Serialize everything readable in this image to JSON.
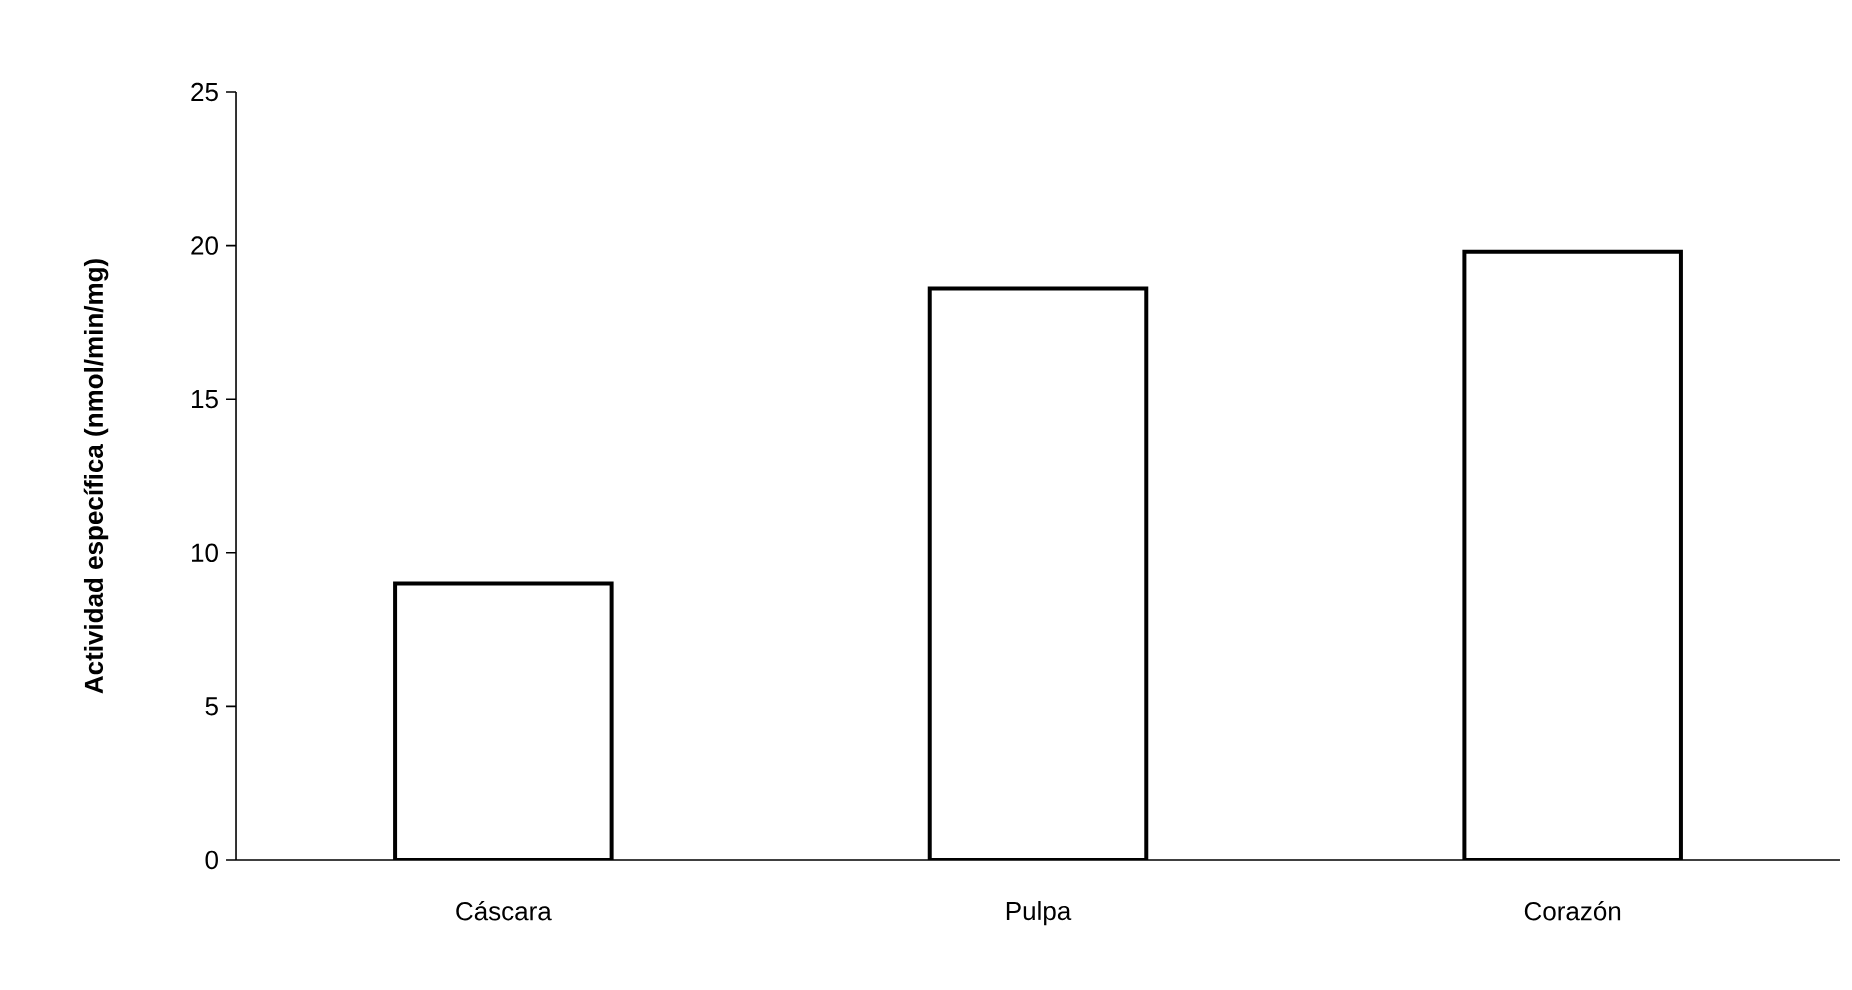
{
  "chart_data": {
    "type": "bar",
    "ylabel": "Actividad específica  (nmol/min/mg)",
    "categories": [
      "Cáscara",
      "Pulpa",
      "Corazón"
    ],
    "values": [
      9.0,
      18.6,
      19.8
    ],
    "color": "#ffffff",
    "ylim": [
      0,
      25
    ],
    "yticks": [
      0,
      5,
      10,
      15,
      20,
      25
    ],
    "grid": false
  }
}
